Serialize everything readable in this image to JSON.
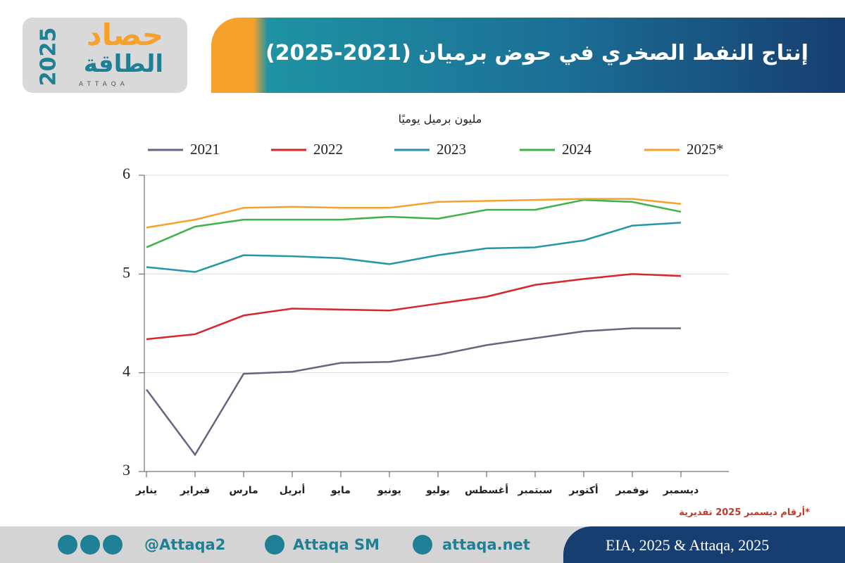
{
  "header": {
    "title": "إنتاج النفط الصخري في حوض برميان (2021-2025)",
    "logo_top": "حصاد",
    "logo_bottom": "الطاقة",
    "logo_year": "2025",
    "logo_latin": "ATTAQA"
  },
  "chart_data": {
    "type": "line",
    "subtitle": "مليون برميل يوميًا",
    "categories": [
      "يناير",
      "فبراير",
      "مارس",
      "أبريل",
      "مايو",
      "يونيو",
      "يوليو",
      "أغسطس",
      "سبتمبر",
      "أكتوبر",
      "نوفمبر",
      "ديسمبر"
    ],
    "series": [
      {
        "name": "2021",
        "color": "#6e6180",
        "values": [
          3.83,
          3.17,
          3.99,
          4.01,
          4.1,
          4.11,
          4.18,
          4.28,
          4.35,
          4.42,
          4.45,
          4.45
        ]
      },
      {
        "name": "2022",
        "color": "#d9262b",
        "values": [
          4.34,
          4.39,
          4.58,
          4.65,
          4.64,
          4.63,
          4.7,
          4.77,
          4.89,
          4.95,
          5.0,
          4.98
        ]
      },
      {
        "name": "2023",
        "color": "#2596a8",
        "values": [
          5.07,
          5.02,
          5.19,
          5.18,
          5.16,
          5.1,
          5.19,
          5.26,
          5.27,
          5.34,
          5.49,
          5.52
        ]
      },
      {
        "name": "2024",
        "color": "#3fb24a",
        "values": [
          5.27,
          5.48,
          5.55,
          5.55,
          5.55,
          5.58,
          5.56,
          5.65,
          5.65,
          5.75,
          5.73,
          5.63
        ]
      },
      {
        "name": "2025*",
        "color": "#f5a12c",
        "values": [
          5.47,
          5.55,
          5.67,
          5.68,
          5.67,
          5.67,
          5.73,
          5.74,
          5.75,
          5.76,
          5.76,
          5.71
        ]
      }
    ],
    "ylim": [
      3,
      6
    ],
    "yticks": [
      3,
      4,
      5,
      6
    ],
    "grid": true,
    "note": "*أرقام ديسمبر 2025 تقديرية"
  },
  "footer": {
    "handle": "@Attaqa2",
    "youtube": "Attaqa SM",
    "site": "attaqa.net",
    "source": "EIA, 2025 & Attaqa, 2025"
  }
}
